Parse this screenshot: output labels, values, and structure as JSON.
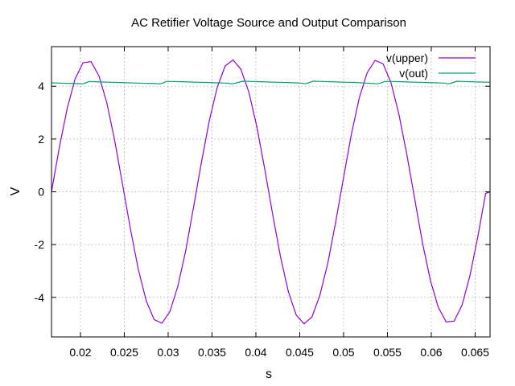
{
  "chart_data": {
    "type": "line",
    "title": "AC Retifier Voltage Source and Output Comparison",
    "xlabel": "s",
    "ylabel": "V",
    "xlim": [
      0.0167,
      0.0667
    ],
    "ylim": [
      -5.5,
      5.5
    ],
    "xticks": [
      0.02,
      0.025,
      0.03,
      0.035,
      0.04,
      0.045,
      0.05,
      0.055,
      0.06,
      0.065
    ],
    "xtick_labels": [
      "0.02",
      "0.025",
      "0.03",
      "0.035",
      "0.04",
      "0.045",
      "0.05",
      "0.055",
      "0.06",
      "0.065"
    ],
    "yticks": [
      -4,
      -2,
      0,
      2,
      4
    ],
    "ytick_labels": [
      "-4",
      "-2",
      "0",
      "2",
      "4"
    ],
    "grid": true,
    "legend_position": "top-right",
    "series": [
      {
        "name": "v(upper)",
        "color": "#9400d3",
        "x": [
          0.0167,
          0.0176,
          0.0185,
          0.0194,
          0.0203,
          0.0212,
          0.0221,
          0.023,
          0.0239,
          0.0248,
          0.0257,
          0.0266,
          0.0275,
          0.0284,
          0.0293,
          0.0302,
          0.0311,
          0.032,
          0.0329,
          0.0338,
          0.0347,
          0.0356,
          0.0365,
          0.0374,
          0.0383,
          0.0392,
          0.0401,
          0.041,
          0.0419,
          0.0428,
          0.0437,
          0.0446,
          0.0455,
          0.0464,
          0.0473,
          0.0482,
          0.0491,
          0.05,
          0.0509,
          0.0518,
          0.0527,
          0.0536,
          0.0545,
          0.0554,
          0.0563,
          0.0572,
          0.0581,
          0.059,
          0.0599,
          0.0608,
          0.0617,
          0.0626,
          0.0635,
          0.0644,
          0.0653,
          0.0662,
          0.0667
        ],
        "y": [
          0.0,
          1.69,
          3.17,
          4.28,
          4.89,
          4.93,
          4.4,
          3.38,
          1.95,
          0.28,
          -1.41,
          -2.94,
          -4.13,
          -4.84,
          -4.98,
          -4.53,
          -3.58,
          -2.23,
          -0.57,
          1.13,
          2.71,
          3.96,
          4.77,
          5.0,
          4.64,
          3.77,
          2.48,
          0.88,
          -0.83,
          -2.45,
          -3.78,
          -4.67,
          -5.0,
          -4.74,
          -3.92,
          -2.7,
          -1.14,
          0.55,
          2.2,
          3.57,
          4.52,
          4.98,
          4.85,
          4.14,
          2.96,
          1.43,
          -0.26,
          -1.94,
          -3.36,
          -4.38,
          -4.93,
          -4.9,
          -4.3,
          -3.19,
          -1.72,
          -0.06,
          0.0
        ]
      },
      {
        "name": "v(out)",
        "color": "#009e73",
        "x": [
          0.0167,
          0.0175,
          0.0185,
          0.0195,
          0.0203,
          0.0207,
          0.021,
          0.0215,
          0.0225,
          0.0235,
          0.0245,
          0.0255,
          0.0265,
          0.0275,
          0.0285,
          0.029,
          0.0294,
          0.0298,
          0.0305,
          0.0315,
          0.0325,
          0.0335,
          0.0345,
          0.0355,
          0.0365,
          0.0369,
          0.0373,
          0.0378,
          0.0385,
          0.0395,
          0.0405,
          0.0415,
          0.0425,
          0.0435,
          0.0445,
          0.0452,
          0.0456,
          0.046,
          0.0465,
          0.0475,
          0.0485,
          0.0495,
          0.0505,
          0.0515,
          0.0525,
          0.0535,
          0.0538,
          0.0542,
          0.0547,
          0.0555,
          0.0565,
          0.0575,
          0.0585,
          0.0595,
          0.0605,
          0.0615,
          0.0619,
          0.0624,
          0.0629,
          0.0635,
          0.0645,
          0.0655,
          0.0667
        ],
        "y": [
          4.13,
          4.12,
          4.11,
          4.1,
          4.09,
          4.14,
          4.18,
          4.17,
          4.16,
          4.15,
          4.14,
          4.13,
          4.12,
          4.11,
          4.1,
          4.09,
          4.12,
          4.18,
          4.18,
          4.17,
          4.16,
          4.15,
          4.14,
          4.13,
          4.12,
          4.11,
          4.09,
          4.13,
          4.19,
          4.18,
          4.17,
          4.16,
          4.15,
          4.14,
          4.13,
          4.12,
          4.09,
          4.13,
          4.19,
          4.18,
          4.17,
          4.16,
          4.15,
          4.14,
          4.12,
          4.1,
          4.09,
          4.12,
          4.18,
          4.18,
          4.17,
          4.16,
          4.15,
          4.14,
          4.13,
          4.12,
          4.09,
          4.13,
          4.19,
          4.18,
          4.17,
          4.16,
          4.15
        ]
      }
    ]
  }
}
